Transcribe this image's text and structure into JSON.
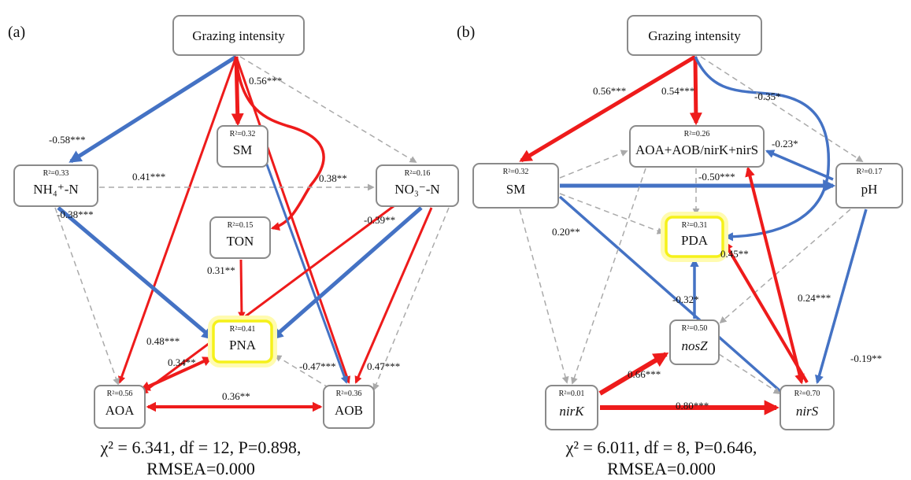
{
  "colors": {
    "positive": "#ee1b1b",
    "negative": "#4472c4",
    "nonsig": "#aaaaaa",
    "highlight": "#f5f11a"
  },
  "panels": [
    {
      "label": "(a)",
      "fit_line1": "χ² = 6.341, df = 12, P=0.898,",
      "fit_line2": "RMSEA=0.000",
      "nodes": [
        {
          "id": "a_GI",
          "name": "Grazing intensity",
          "r2": ""
        },
        {
          "id": "a_NH4",
          "name": "NH₄⁺-N",
          "r2": "R²=0.33"
        },
        {
          "id": "a_SM",
          "name": "SM",
          "r2": "R²=0.32"
        },
        {
          "id": "a_NO3",
          "name": "NO₃⁻-N",
          "r2": "R²=0.16"
        },
        {
          "id": "a_TON",
          "name": "TON",
          "r2": "R²=0.15"
        },
        {
          "id": "a_PNA",
          "name": "PNA",
          "r2": "R²=0.41"
        },
        {
          "id": "a_AOA",
          "name": "AOA",
          "r2": "R²=0.56"
        },
        {
          "id": "a_AOB",
          "name": "AOB",
          "r2": "R²=0.36"
        }
      ],
      "coefficients": [
        "0.56***",
        "-0.58***",
        "0.41***",
        "0.38**",
        "-0.38***",
        "-0.39**",
        "0.31**",
        "0.48***",
        "0.34**",
        "0.36**",
        "-0.47***",
        "0.47***"
      ]
    },
    {
      "label": "(b)",
      "fit_line1": "χ² = 6.011, df = 8, P=0.646,",
      "fit_line2": "RMSEA=0.000",
      "nodes": [
        {
          "id": "b_GI",
          "name": "Grazing intensity",
          "r2": ""
        },
        {
          "id": "b_AOA",
          "name": "AOA+AOB/nirK+nirS",
          "r2": "R²=0.26"
        },
        {
          "id": "b_SM",
          "name": "SM",
          "r2": "R²=0.32"
        },
        {
          "id": "b_pH",
          "name": "pH",
          "r2": "R²=0.17"
        },
        {
          "id": "b_PDA",
          "name": "PDA",
          "r2": "R²=0.31"
        },
        {
          "id": "b_nosZ",
          "name": "nosZ",
          "r2": "R²=0.50"
        },
        {
          "id": "b_nirK",
          "name": "nirK",
          "r2": "R²=0.01"
        },
        {
          "id": "b_nirS",
          "name": "nirS",
          "r2": "R²=0.70"
        }
      ],
      "coefficients": [
        "0.56***",
        "0.54***",
        "-0.35*",
        "-0.23*",
        "-0.50***",
        "0.20**",
        "0.45**",
        "0.24***",
        "-0.32*",
        "-0.19**",
        "0.66***",
        "0.80***"
      ]
    }
  ]
}
